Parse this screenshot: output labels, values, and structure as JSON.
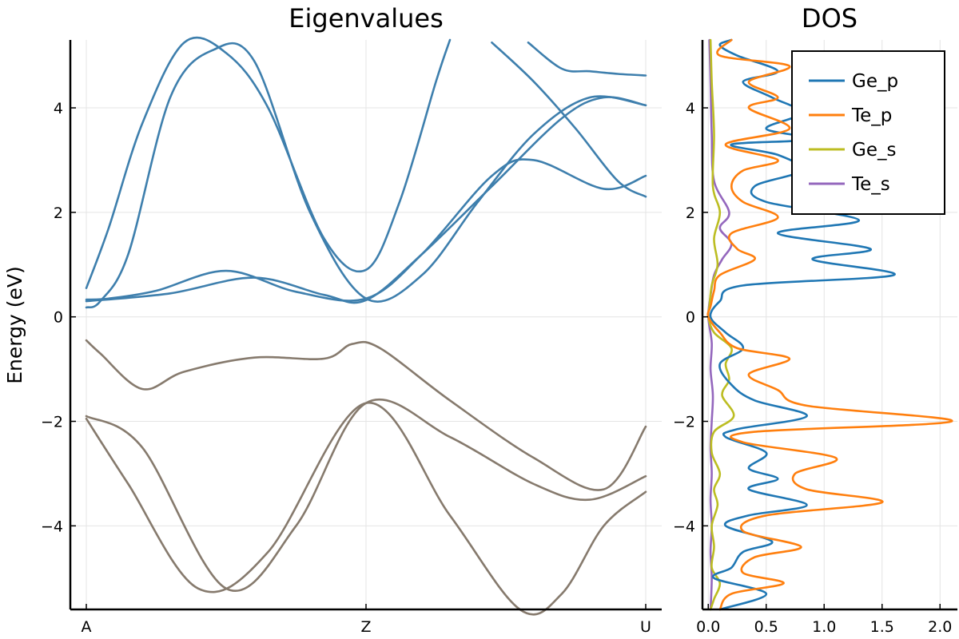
{
  "chart_data": [
    {
      "type": "line",
      "title": "Eigenvalues",
      "ylabel": "Energy (eV)",
      "xlabel": "",
      "xticks": [
        "A",
        "Z",
        "U"
      ],
      "x_range": [
        0,
        2
      ],
      "ylim": [
        -5.6,
        5.3
      ],
      "yticks": [
        4,
        2,
        0,
        -2,
        -4
      ],
      "ytick_labels": [
        "4",
        "2",
        "0",
        "−2",
        "−4"
      ],
      "grid": true,
      "conduction_color": "#3e7fad",
      "valence_color": "#867a6d",
      "bands": [
        {
          "group": "conduction",
          "x": [
            0.0,
            0.08,
            0.2,
            0.35,
            0.5,
            0.65,
            0.85,
            1.0,
            1.12,
            1.25,
            1.3
          ],
          "y": [
            0.55,
            1.7,
            3.7,
            5.25,
            5.05,
            4.0,
            1.5,
            0.9,
            2.2,
            4.5,
            5.3
          ]
        },
        {
          "group": "conduction",
          "x": [
            0.0,
            0.05,
            0.15,
            0.3,
            0.45,
            0.6,
            0.8,
            1.0,
            1.2,
            1.4,
            1.6,
            1.8,
            2.0
          ],
          "y": [
            0.18,
            0.3,
            1.2,
            4.2,
            5.1,
            4.9,
            2.0,
            0.35,
            0.8,
            2.2,
            3.5,
            4.2,
            4.05
          ]
        },
        {
          "group": "conduction",
          "x": [
            0.0,
            0.08,
            0.25,
            0.5,
            0.75,
            1.0,
            1.2,
            1.45,
            1.6,
            1.85,
            2.0
          ],
          "y": [
            0.33,
            0.35,
            0.5,
            0.88,
            0.48,
            0.35,
            1.2,
            2.7,
            3.0,
            2.45,
            2.7
          ]
        },
        {
          "group": "conduction",
          "x": [
            0.0,
            0.3,
            0.6,
            0.85,
            1.0,
            1.2,
            1.45,
            1.7,
            1.85,
            2.0
          ],
          "y": [
            0.3,
            0.45,
            0.75,
            0.42,
            0.32,
            1.2,
            2.5,
            3.8,
            4.2,
            4.05
          ]
        },
        {
          "group": "conduction",
          "x": [
            1.45,
            1.6,
            1.75,
            1.9,
            2.0
          ],
          "y": [
            5.25,
            4.5,
            3.6,
            2.6,
            2.3
          ]
        },
        {
          "group": "conduction",
          "x": [
            1.58,
            1.7,
            1.8,
            1.9,
            2.0
          ],
          "y": [
            5.25,
            4.75,
            4.7,
            4.65,
            4.62
          ]
        },
        {
          "group": "valence",
          "x": [
            0.0,
            0.05,
            0.2,
            0.35,
            0.6,
            0.85,
            0.95,
            1.05,
            1.3,
            1.6,
            1.85,
            2.0
          ],
          "y": [
            -0.45,
            -0.7,
            -1.38,
            -1.05,
            -0.78,
            -0.8,
            -0.52,
            -0.6,
            -1.6,
            -2.7,
            -3.3,
            -2.1
          ]
        },
        {
          "group": "valence",
          "x": [
            0.0,
            0.2,
            0.5,
            0.75,
            1.0,
            1.3,
            1.6,
            1.8,
            2.0
          ],
          "y": [
            -1.9,
            -2.5,
            -5.2,
            -4.0,
            -1.65,
            -2.3,
            -3.2,
            -3.5,
            -3.05
          ]
        },
        {
          "group": "valence",
          "x": [
            0.0,
            0.15,
            0.4,
            0.65,
            1.0,
            1.3,
            1.55,
            1.7,
            1.85,
            2.0
          ],
          "y": [
            -1.95,
            -3.2,
            -5.2,
            -4.5,
            -1.65,
            -3.8,
            -5.6,
            -5.3,
            -4.0,
            -3.35
          ]
        }
      ]
    },
    {
      "type": "line",
      "title": "DOS",
      "xlabel": "",
      "ylabel": "",
      "xlim": [
        -0.05,
        2.15
      ],
      "ylim": [
        -5.6,
        5.3
      ],
      "xticks": [
        0.0,
        0.5,
        1.0,
        1.5,
        2.0
      ],
      "xtick_labels": [
        "0.0",
        "0.5",
        "1.0",
        "1.5",
        "2.0"
      ],
      "yticks": [
        4,
        2,
        0,
        -2,
        -4
      ],
      "ytick_labels": [
        "4",
        "2",
        "0",
        "−2",
        "−4"
      ],
      "grid": true,
      "legend_position": "top-right",
      "series": [
        {
          "name": "Ge_p",
          "color": "#1f77b4",
          "energy": [
            5.3,
            5.2,
            5.0,
            4.7,
            4.5,
            4.2,
            3.9,
            3.6,
            3.4,
            3.3,
            3.1,
            2.8,
            2.5,
            2.2,
            1.85,
            1.6,
            1.3,
            1.1,
            0.8,
            0.6,
            0.3,
            0.0,
            -0.3,
            -0.6,
            -0.9,
            -1.3,
            -1.6,
            -1.9,
            -2.15,
            -2.3,
            -2.6,
            -2.9,
            -3.1,
            -3.3,
            -3.6,
            -3.8,
            -4.0,
            -4.3,
            -4.5,
            -4.8,
            -5.0,
            -5.3,
            -5.6
          ],
          "value": [
            0.2,
            0.1,
            0.25,
            0.6,
            0.3,
            0.55,
            0.8,
            0.5,
            0.9,
            0.2,
            0.6,
            0.8,
            0.4,
            0.5,
            1.3,
            0.6,
            1.4,
            0.9,
            1.6,
            0.3,
            0.1,
            0.02,
            0.15,
            0.3,
            0.1,
            0.2,
            0.4,
            0.85,
            0.25,
            0.15,
            0.5,
            0.35,
            0.6,
            0.35,
            0.85,
            0.35,
            0.15,
            0.55,
            0.3,
            0.2,
            0.05,
            0.5,
            0.1
          ]
        },
        {
          "name": "Te_p",
          "color": "#ff7f0e",
          "energy": [
            5.3,
            5.0,
            4.8,
            4.5,
            4.2,
            4.0,
            3.6,
            3.3,
            3.0,
            2.8,
            2.5,
            2.2,
            1.9,
            1.6,
            1.3,
            1.1,
            0.8,
            0.5,
            0.2,
            0.0,
            -0.3,
            -0.6,
            -0.8,
            -1.1,
            -1.4,
            -1.7,
            -2.0,
            -2.2,
            -2.4,
            -2.7,
            -3.0,
            -3.3,
            -3.55,
            -3.8,
            -4.1,
            -4.4,
            -4.6,
            -4.9,
            -5.1,
            -5.3,
            -5.6
          ],
          "value": [
            0.2,
            0.1,
            0.7,
            0.35,
            0.6,
            0.35,
            0.7,
            0.15,
            0.6,
            0.3,
            0.2,
            0.3,
            0.6,
            0.2,
            0.25,
            0.4,
            0.1,
            0.05,
            0.02,
            0.0,
            0.1,
            0.25,
            0.7,
            0.35,
            0.6,
            0.85,
            2.1,
            0.4,
            0.3,
            1.1,
            0.75,
            0.85,
            1.5,
            0.5,
            0.3,
            0.8,
            0.4,
            0.3,
            0.65,
            0.2,
            0.1
          ]
        },
        {
          "name": "Ge_s",
          "color": "#bcbd22",
          "energy": [
            5.3,
            4.5,
            3.5,
            2.5,
            2.0,
            1.5,
            1.0,
            0.6,
            0.2,
            0.0,
            -0.3,
            -0.6,
            -0.9,
            -1.2,
            -1.5,
            -1.9,
            -2.2,
            -2.6,
            -3.0,
            -3.3,
            -3.6,
            -4.0,
            -4.4,
            -4.8,
            -5.1,
            -5.4,
            -5.6
          ],
          "value": [
            0.02,
            0.03,
            0.05,
            0.04,
            0.1,
            0.05,
            0.08,
            0.03,
            0.01,
            0.0,
            0.05,
            0.2,
            0.15,
            0.18,
            0.12,
            0.22,
            0.05,
            0.03,
            0.1,
            0.05,
            0.08,
            0.03,
            0.05,
            0.03,
            0.1,
            0.05,
            0.02
          ]
        },
        {
          "name": "Te_s",
          "color": "#9467bd",
          "energy": [
            5.3,
            4.5,
            3.5,
            2.6,
            2.0,
            1.7,
            1.4,
            1.1,
            0.8,
            0.4,
            0.0,
            -0.5,
            -1.0,
            -1.5,
            -2.0,
            -2.5,
            -3.0,
            -3.5,
            -4.0,
            -4.5,
            -5.0,
            -5.6
          ],
          "value": [
            0.01,
            0.02,
            0.03,
            0.05,
            0.18,
            0.1,
            0.2,
            0.12,
            0.05,
            0.02,
            0.0,
            0.03,
            0.02,
            0.04,
            0.03,
            0.02,
            0.03,
            0.02,
            0.03,
            0.02,
            0.03,
            0.02
          ]
        }
      ]
    }
  ]
}
